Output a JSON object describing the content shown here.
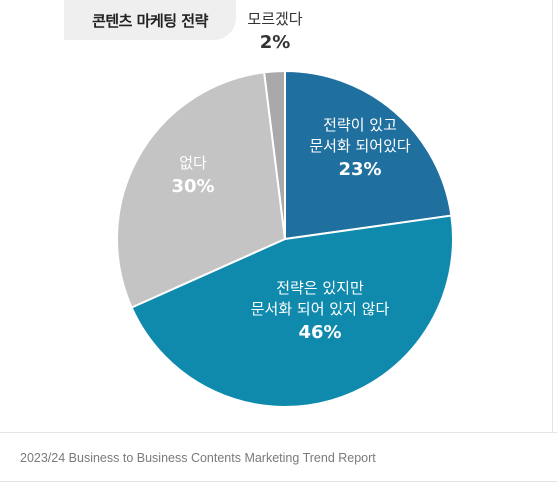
{
  "chart_data": {
    "type": "pie",
    "title": "콘텐츠 마케팅 전략",
    "slices": [
      {
        "lines": [
          "전략이 있고",
          "문서화 되어있다"
        ],
        "value": 23,
        "value_label": "23%",
        "color": "#1f6f9f"
      },
      {
        "lines": [
          "전략은 있지만",
          "문서화 되어 있지 않다"
        ],
        "value": 46,
        "value_label": "46%",
        "color": "#0f8aad"
      },
      {
        "lines": [
          "없다"
        ],
        "value": 30,
        "value_label": "30%",
        "color": "#c4c4c4"
      },
      {
        "lines": [
          "모르겠다"
        ],
        "value": 2,
        "value_label": "2%",
        "color": "#a9a9a9"
      }
    ]
  },
  "footer": "2023/24 Business to Business Contents Marketing Trend Report"
}
